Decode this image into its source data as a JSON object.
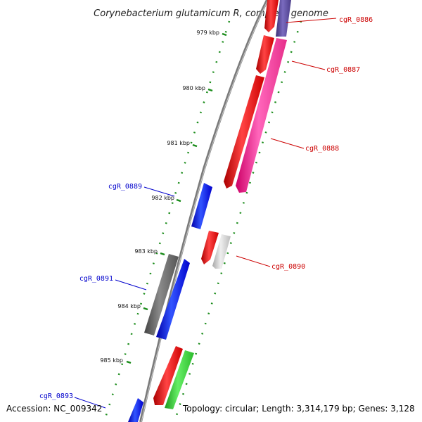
{
  "title": "Corynebacterium glutamicum R, complete genome",
  "footer": {
    "accession": "Accession: NC_009342",
    "topology": "Topology: circular; Length: 3,314,179 bp; Genes: 3,128"
  },
  "ticks": [
    "979 kbp",
    "980 kbp",
    "981 kbp",
    "982 kbp",
    "983 kbp",
    "984 kbp",
    "985 kbp"
  ],
  "gene_labels": [
    "cgR_0886",
    "cgR_0887",
    "cgR_0888",
    "cgR_0889",
    "cgR_0890",
    "cgR_0891",
    "cgR_0893"
  ],
  "colors": {
    "forward_gene": "#ff0000",
    "reverse_gene": "#0000ff",
    "forward_label": "#cc0000",
    "reverse_label": "#0000cc",
    "pink_feature": "#ff3399",
    "purple_feature": "#5b4b9a",
    "gray_feature": "#666666",
    "light_gray_feature": "#c8c8c8",
    "green_feature": "#33cc33",
    "backbone": "#888888",
    "dotted_ring": "#1a8c1a"
  }
}
